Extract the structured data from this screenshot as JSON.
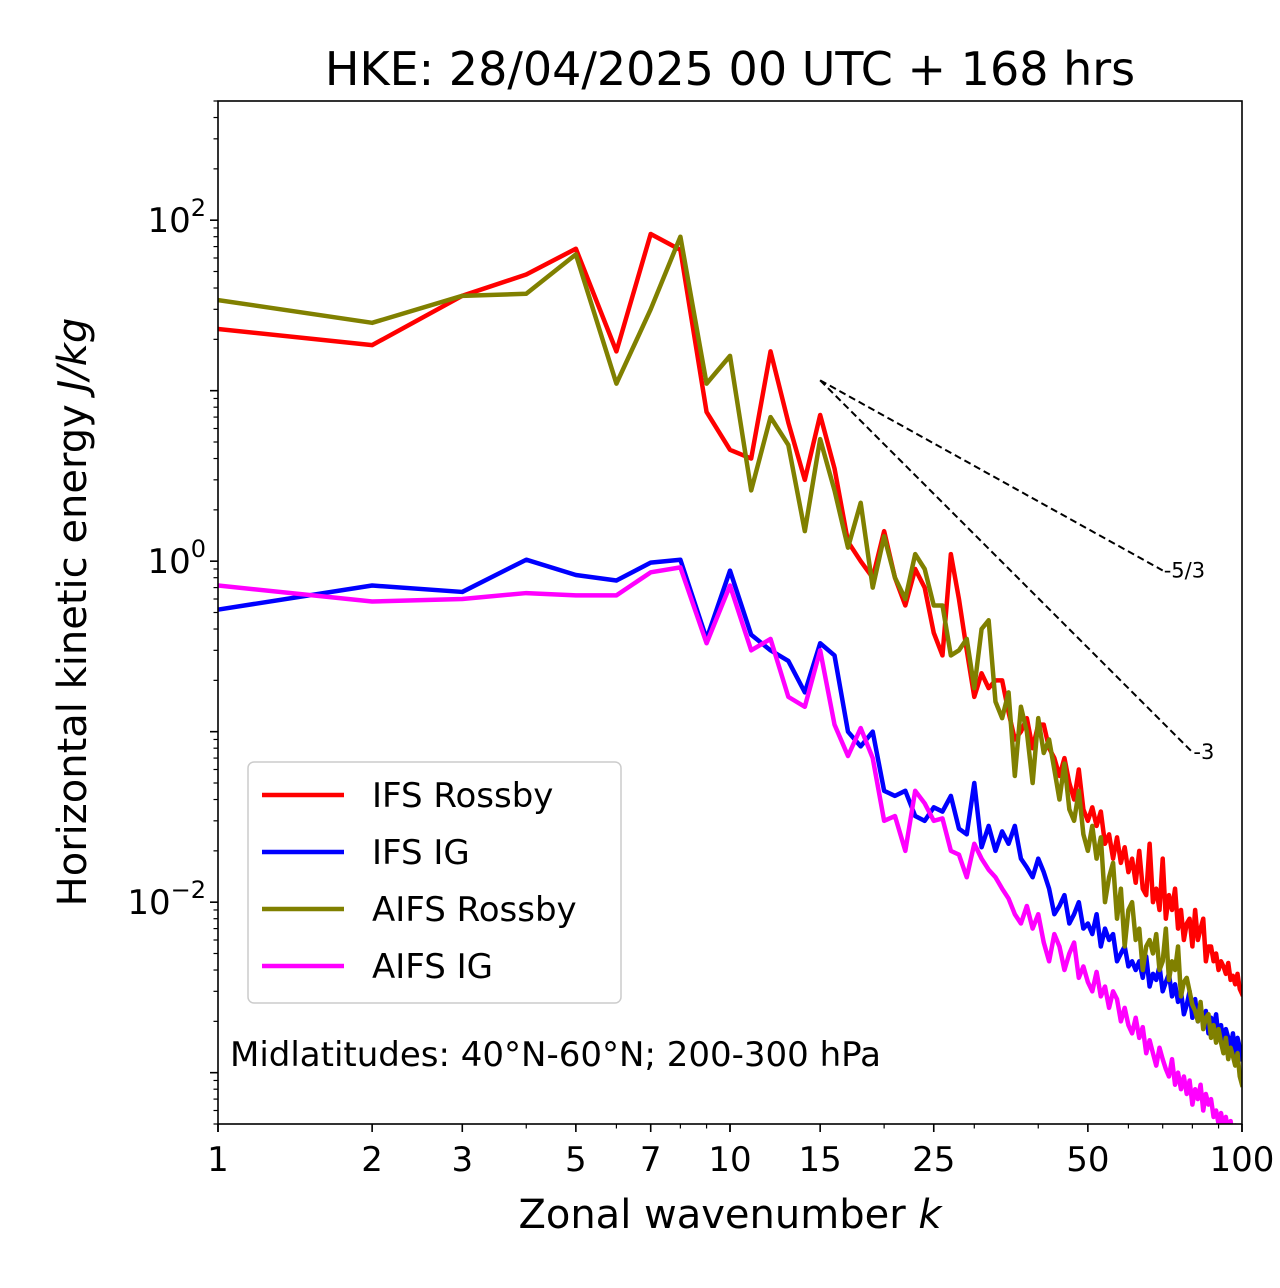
{
  "chart_data": {
    "type": "line",
    "title": "HKE: 28/04/2025 00 UTC + 168 hrs",
    "xlabel_main": "Zonal wavenumber ",
    "xlabel_var": "k",
    "ylabel_main": "Horizontal kinetic energy ",
    "ylabel_unit": "J/kg",
    "xscale": "log",
    "yscale": "log",
    "xlim": [
      1,
      100
    ],
    "ylim": [
      0.0005,
      500
    ],
    "xticks": [
      1,
      2,
      3,
      5,
      7,
      10,
      15,
      25,
      50,
      100
    ],
    "xtick_labels": [
      "1",
      "2",
      "3",
      "5",
      "7",
      "10",
      "15",
      "25",
      "50",
      "100"
    ],
    "yticks": [
      {
        "value": 100,
        "base": "10",
        "exp": "2"
      },
      {
        "value": 1,
        "base": "10",
        "exp": "0"
      },
      {
        "value": 0.01,
        "base": "10",
        "exp": "−2"
      }
    ],
    "annotation": "Midlatitudes: 40°N-60°N; 200-300 hPa",
    "legend_position": "lower-left",
    "reference_lines": [
      {
        "label": "-5/3",
        "slope": -1.6667,
        "x_start": 15,
        "y_start": 11.5,
        "x_end": 70,
        "color": "#000000"
      },
      {
        "label": "-3",
        "slope": -3,
        "x_start": 15,
        "y_start": 11.5,
        "x_end": 80,
        "color": "#000000"
      }
    ],
    "series": [
      {
        "name": "IFS Rossby",
        "color": "#ff0000",
        "x": [
          1,
          2,
          3,
          4,
          5,
          6,
          7,
          8,
          9,
          10,
          11,
          12,
          13,
          14,
          15,
          16,
          17,
          18,
          19,
          20,
          21,
          22,
          23,
          24,
          25,
          26,
          27,
          28,
          29,
          30,
          31,
          32,
          33,
          34,
          35,
          36,
          37,
          38,
          39,
          40,
          41,
          42,
          43,
          44,
          45,
          46,
          47,
          48,
          49,
          50,
          51,
          52,
          53,
          54,
          55,
          56,
          57,
          58,
          59,
          60,
          61,
          62,
          63,
          64,
          65,
          66,
          67,
          68,
          69,
          70,
          71,
          72,
          73,
          74,
          75,
          76,
          77,
          78,
          79,
          80,
          81,
          82,
          83,
          84,
          85,
          86,
          87,
          88,
          89,
          90,
          91,
          92,
          93,
          94,
          95,
          96,
          97,
          98,
          99,
          100
        ],
        "y": [
          23,
          18.5,
          36,
          48,
          68,
          17,
          83,
          67,
          7.5,
          4.5,
          4,
          17,
          6.5,
          3,
          7.2,
          3.5,
          1.3,
          1,
          0.8,
          1.5,
          0.8,
          0.55,
          0.9,
          0.7,
          0.38,
          0.28,
          1.1,
          0.6,
          0.3,
          0.16,
          0.22,
          0.18,
          0.2,
          0.2,
          0.13,
          0.09,
          0.1,
          0.12,
          0.08,
          0.11,
          0.11,
          0.08,
          0.07,
          0.055,
          0.07,
          0.05,
          0.04,
          0.06,
          0.035,
          0.03,
          0.036,
          0.028,
          0.034,
          0.022,
          0.025,
          0.018,
          0.024,
          0.017,
          0.021,
          0.015,
          0.018,
          0.013,
          0.02,
          0.012,
          0.011,
          0.022,
          0.01,
          0.012,
          0.009,
          0.018,
          0.008,
          0.011,
          0.009,
          0.012,
          0.007,
          0.009,
          0.006,
          0.0075,
          0.008,
          0.0055,
          0.009,
          0.006,
          0.007,
          0.008,
          0.0045,
          0.0055,
          0.0055,
          0.0045,
          0.005,
          0.004,
          0.0045,
          0.0042,
          0.0038,
          0.0044,
          0.0035,
          0.0037,
          0.0033,
          0.0038,
          0.0031,
          0.0029
        ]
      },
      {
        "name": "IFS IG",
        "color": "#0000ff",
        "x": [
          1,
          2,
          3,
          4,
          5,
          6,
          7,
          8,
          9,
          10,
          11,
          12,
          13,
          14,
          15,
          16,
          17,
          18,
          19,
          20,
          21,
          22,
          23,
          24,
          25,
          26,
          27,
          28,
          29,
          30,
          31,
          32,
          33,
          34,
          35,
          36,
          37,
          38,
          39,
          40,
          41,
          42,
          43,
          44,
          45,
          46,
          47,
          48,
          49,
          50,
          51,
          52,
          53,
          54,
          55,
          56,
          57,
          58,
          59,
          60,
          61,
          62,
          63,
          64,
          65,
          66,
          67,
          68,
          69,
          70,
          71,
          72,
          73,
          74,
          75,
          76,
          77,
          78,
          79,
          80,
          81,
          82,
          83,
          84,
          85,
          86,
          87,
          88,
          89,
          90,
          91,
          92,
          93,
          94,
          95,
          96,
          97,
          98,
          99,
          100
        ],
        "y": [
          0.52,
          0.72,
          0.66,
          1.02,
          0.83,
          0.77,
          0.98,
          1.02,
          0.35,
          0.88,
          0.37,
          0.3,
          0.26,
          0.17,
          0.33,
          0.28,
          0.1,
          0.082,
          0.1,
          0.045,
          0.042,
          0.045,
          0.032,
          0.03,
          0.036,
          0.034,
          0.042,
          0.027,
          0.025,
          0.05,
          0.021,
          0.028,
          0.02,
          0.026,
          0.022,
          0.028,
          0.018,
          0.016,
          0.014,
          0.018,
          0.015,
          0.012,
          0.0085,
          0.0095,
          0.011,
          0.0075,
          0.0085,
          0.01,
          0.007,
          0.0075,
          0.0065,
          0.0085,
          0.0055,
          0.007,
          0.006,
          0.0065,
          0.0045,
          0.005,
          0.0055,
          0.0042,
          0.0045,
          0.004,
          0.0045,
          0.0036,
          0.0048,
          0.0032,
          0.0038,
          0.0035,
          0.0042,
          0.003,
          0.0034,
          0.0038,
          0.0028,
          0.0033,
          0.0026,
          0.003,
          0.0022,
          0.0025,
          0.003,
          0.0021,
          0.0027,
          0.002,
          0.0024,
          0.0019,
          0.0023,
          0.0017,
          0.0021,
          0.0018,
          0.0022,
          0.0016,
          0.0019,
          0.0015,
          0.0018,
          0.0016,
          0.0014,
          0.0017,
          0.0013,
          0.0016,
          0.0014,
          0.0012
        ]
      },
      {
        "name": "AIFS Rossby",
        "color": "#808000",
        "x": [
          1,
          2,
          3,
          4,
          5,
          6,
          7,
          8,
          9,
          10,
          11,
          12,
          13,
          14,
          15,
          16,
          17,
          18,
          19,
          20,
          21,
          22,
          23,
          24,
          25,
          26,
          27,
          28,
          29,
          30,
          31,
          32,
          33,
          34,
          35,
          36,
          37,
          38,
          39,
          40,
          41,
          42,
          43,
          44,
          45,
          46,
          47,
          48,
          49,
          50,
          51,
          52,
          53,
          54,
          55,
          56,
          57,
          58,
          59,
          60,
          61,
          62,
          63,
          64,
          65,
          66,
          67,
          68,
          69,
          70,
          71,
          72,
          73,
          74,
          75,
          76,
          77,
          78,
          79,
          80,
          81,
          82,
          83,
          84,
          85,
          86,
          87,
          88,
          89,
          90,
          91,
          92,
          93,
          94,
          95,
          96,
          97,
          98,
          99,
          100
        ],
        "y": [
          34,
          25,
          36,
          37,
          63,
          11,
          30,
          80,
          11,
          16,
          2.6,
          7,
          4.8,
          1.5,
          5.2,
          2.6,
          1.2,
          2.2,
          0.7,
          1.4,
          0.8,
          0.6,
          1.1,
          0.9,
          0.55,
          0.55,
          0.28,
          0.3,
          0.35,
          0.18,
          0.4,
          0.45,
          0.15,
          0.12,
          0.17,
          0.055,
          0.14,
          0.1,
          0.05,
          0.12,
          0.075,
          0.09,
          0.06,
          0.04,
          0.065,
          0.035,
          0.03,
          0.045,
          0.025,
          0.02,
          0.028,
          0.018,
          0.024,
          0.01,
          0.014,
          0.017,
          0.008,
          0.012,
          0.0055,
          0.009,
          0.01,
          0.006,
          0.007,
          0.004,
          0.0055,
          0.006,
          0.005,
          0.0065,
          0.004,
          0.0045,
          0.007,
          0.0035,
          0.0045,
          0.004,
          0.0055,
          0.0028,
          0.0034,
          0.0036,
          0.003,
          0.0025,
          0.0023,
          0.002,
          0.0026,
          0.0018,
          0.0021,
          0.0022,
          0.0016,
          0.0019,
          0.0015,
          0.0018,
          0.0015,
          0.0013,
          0.0016,
          0.0012,
          0.0014,
          0.00125,
          0.0011,
          0.0013,
          0.00095,
          0.00085
        ]
      },
      {
        "name": "AIFS IG",
        "color": "#ff00ff",
        "x": [
          1,
          2,
          3,
          4,
          5,
          6,
          7,
          8,
          9,
          10,
          11,
          12,
          13,
          14,
          15,
          16,
          17,
          18,
          19,
          20,
          21,
          22,
          23,
          24,
          25,
          26,
          27,
          28,
          29,
          30,
          31,
          32,
          33,
          34,
          35,
          36,
          37,
          38,
          39,
          40,
          41,
          42,
          43,
          44,
          45,
          46,
          47,
          48,
          49,
          50,
          51,
          52,
          53,
          54,
          55,
          56,
          57,
          58,
          59,
          60,
          61,
          62,
          63,
          64,
          65,
          66,
          67,
          68,
          69,
          70,
          71,
          72,
          73,
          74,
          75,
          76,
          77,
          78,
          79,
          80,
          81,
          82,
          83,
          84,
          85,
          86,
          87,
          88,
          89,
          90,
          91,
          92,
          93,
          94,
          95,
          96,
          97,
          98,
          99,
          100
        ],
        "y": [
          0.72,
          0.58,
          0.6,
          0.65,
          0.63,
          0.63,
          0.86,
          0.92,
          0.33,
          0.72,
          0.3,
          0.35,
          0.16,
          0.14,
          0.3,
          0.11,
          0.072,
          0.105,
          0.07,
          0.03,
          0.032,
          0.02,
          0.045,
          0.038,
          0.03,
          0.031,
          0.02,
          0.019,
          0.014,
          0.022,
          0.018,
          0.0155,
          0.014,
          0.012,
          0.0105,
          0.0085,
          0.0075,
          0.0095,
          0.007,
          0.0085,
          0.0058,
          0.0045,
          0.0065,
          0.0055,
          0.004,
          0.005,
          0.0058,
          0.0036,
          0.0042,
          0.0034,
          0.003,
          0.0039,
          0.0028,
          0.0032,
          0.0024,
          0.003,
          0.0027,
          0.002,
          0.0024,
          0.0019,
          0.0017,
          0.0021,
          0.0016,
          0.00185,
          0.0013,
          0.00155,
          0.0013,
          0.0011,
          0.0014,
          0.0012,
          0.00105,
          0.00095,
          0.0012,
          0.00085,
          0.001,
          0.0008,
          0.00095,
          0.00075,
          0.0009,
          0.00065,
          0.0008,
          0.0007,
          0.00085,
          0.0006,
          0.00075,
          0.00065,
          0.0007,
          0.00055,
          0.0006,
          0.0005,
          0.00058,
          0.00048,
          0.00055,
          0.00045,
          0.00052,
          0.00042,
          0.00049,
          0.0004,
          0.00047,
          0.00038
        ]
      }
    ]
  }
}
